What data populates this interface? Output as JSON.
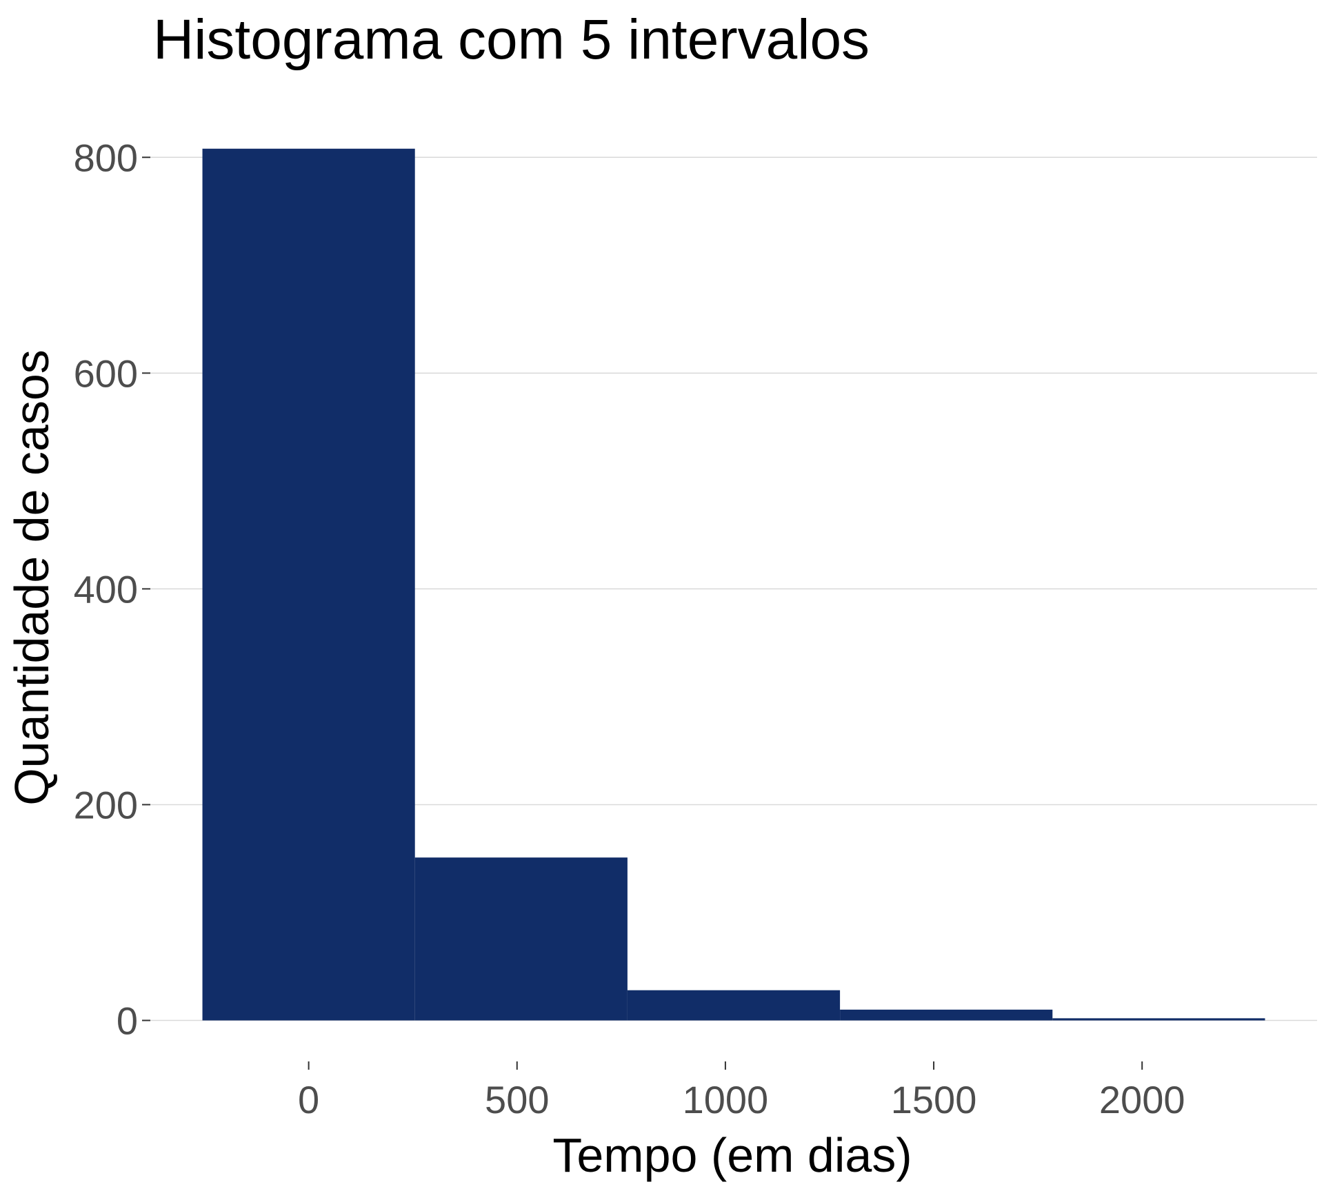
{
  "chart_data": {
    "type": "bar",
    "title": "Histograma com 5 intervalos",
    "xlabel": "Tempo (em dias)",
    "ylabel": "Quantidade de casos",
    "bin_width": 510,
    "bins": [
      {
        "x_start": -255,
        "x_end": 255,
        "count": 808
      },
      {
        "x_start": 255,
        "x_end": 765,
        "count": 151
      },
      {
        "x_start": 765,
        "x_end": 1275,
        "count": 28
      },
      {
        "x_start": 1275,
        "x_end": 1785,
        "count": 10
      },
      {
        "x_start": 1785,
        "x_end": 2295,
        "count": 2
      }
    ],
    "xlim": [
      -380,
      2420
    ],
    "ylim": [
      -38,
      850
    ],
    "x_ticks": [
      0,
      500,
      1000,
      1500,
      2000
    ],
    "x_tick_labels": [
      "0",
      "500",
      "1000",
      "1500",
      "2000"
    ],
    "y_ticks": [
      0,
      200,
      400,
      600,
      800
    ],
    "y_tick_labels": [
      "0",
      "200",
      "400",
      "600",
      "800"
    ],
    "grid": "horizontal major",
    "legend": "none",
    "colors": {
      "bar": "#112d68",
      "grid": "#d9d9d9",
      "tick_label": "#4d4d4d",
      "background": "#ffffff"
    }
  }
}
